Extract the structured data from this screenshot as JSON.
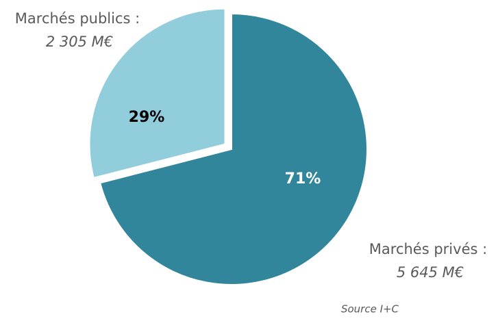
{
  "chart_data": {
    "type": "pie",
    "categories": [
      "Marchés privés :",
      "Marchés publics :"
    ],
    "amounts": [
      "5 645 M€",
      "2 305 M€"
    ],
    "values": [
      71,
      29
    ],
    "value_labels": [
      "71%",
      "29%"
    ],
    "colors": [
      "#31869b",
      "#92cddc"
    ],
    "value_label_colors": [
      "#ffffff",
      "#000000"
    ],
    "source": "Source I+C"
  }
}
